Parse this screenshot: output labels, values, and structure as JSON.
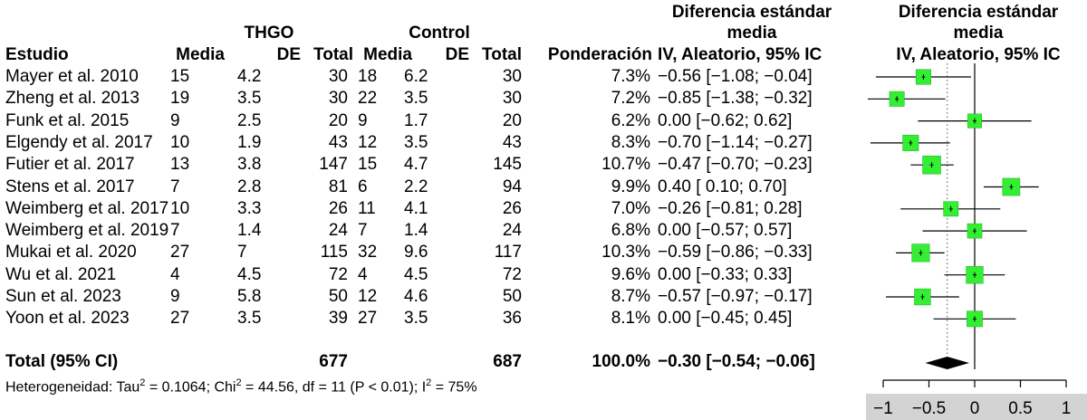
{
  "headers": {
    "group_thgo": "THGO",
    "group_control": "Control",
    "col_study": "Estudio",
    "col_media_1": "Media",
    "col_de_1": "DE",
    "col_total_1": "Total",
    "col_media_2": "Media",
    "col_de_2": "DE",
    "col_total_2": "Total",
    "col_weight": "Ponderación",
    "smd_line1": "Diferencia estándar",
    "smd_line2": "media",
    "smd_line3": "IV, Aleatorio, 95% IC",
    "plot_line1": "Diferencia estándar",
    "plot_line2": "media",
    "plot_line3": "IV, Aleatorio, 95% IC"
  },
  "rows": [
    {
      "study": "Mayer et al. 2010",
      "m1": "15",
      "sd1": "4.2",
      "n1": "30",
      "m2": "18",
      "sd2": "6.2",
      "n2": "30",
      "weight": "7.3%",
      "smd_text": "−0.56 [−1.08; −0.04]"
    },
    {
      "study": "Zheng et al. 2013",
      "m1": "19",
      "sd1": "3.5",
      "n1": "30",
      "m2": "22",
      "sd2": "3.5",
      "n2": "30",
      "weight": "7.2%",
      "smd_text": "−0.85 [−1.38; −0.32]"
    },
    {
      "study": "Funk et al. 2015",
      "m1": "9",
      "sd1": "2.5",
      "n1": "20",
      "m2": "9",
      "sd2": "1.7",
      "n2": "20",
      "weight": "6.2%",
      "smd_text": "0.00 [−0.62; 0.62]"
    },
    {
      "study": "Elgendy et al. 2017",
      "m1": "10",
      "sd1": "1.9",
      "n1": "43",
      "m2": "12",
      "sd2": "3.5",
      "n2": "43",
      "weight": "8.3%",
      "smd_text": "−0.70 [−1.14; −0.27]"
    },
    {
      "study": "Futier et al. 2017",
      "m1": "13",
      "sd1": "3.8",
      "n1": "147",
      "m2": "15",
      "sd2": "4.7",
      "n2": "145",
      "weight": "10.7%",
      "smd_text": "−0.47 [−0.70; −0.23]"
    },
    {
      "study": "Stens et al. 2017",
      "m1": "7",
      "sd1": "2.8",
      "n1": "81",
      "m2": "6",
      "sd2": "2.2",
      "n2": "94",
      "weight": "9.9%",
      "smd_text": "0.40 [ 0.10; 0.70]"
    },
    {
      "study": "Weimberg et al. 2017",
      "m1": "10",
      "sd1": "3.3",
      "n1": "26",
      "m2": "11",
      "sd2": "4.1",
      "n2": "26",
      "weight": "7.0%",
      "smd_text": "−0.26 [−0.81;  0.28]"
    },
    {
      "study": "Weimberg et al. 2019",
      "m1": "7",
      "sd1": "1.4",
      "n1": "24",
      "m2": "7",
      "sd2": "1.4",
      "n2": "24",
      "weight": "6.8%",
      "smd_text": "0.00 [−0.57; 0.57]"
    },
    {
      "study": "Mukai et al. 2020",
      "m1": "27",
      "sd1": "7",
      "n1": "115",
      "m2": "32",
      "sd2": "9.6",
      "n2": "117",
      "weight": "10.3%",
      "smd_text": "−0.59 [−0.86; −0.33]"
    },
    {
      "study": "Wu et al. 2021",
      "m1": "4",
      "sd1": "4.5",
      "n1": "72",
      "m2": "4",
      "sd2": "4.5",
      "n2": "72",
      "weight": "9.6%",
      "smd_text": "0.00 [−0.33; 0.33]"
    },
    {
      "study": "Sun et al. 2023",
      "m1": "9",
      "sd1": "5.8",
      "n1": "50",
      "m2": "12",
      "sd2": "4.6",
      "n2": "50",
      "weight": "8.7%",
      "smd_text": "−0.57 [−0.97; −0.17]"
    },
    {
      "study": "Yoon et al. 2023",
      "m1": "27",
      "sd1": "3.5",
      "n1": "39",
      "m2": "27",
      "sd2": "3.5",
      "n2": "36",
      "weight": "8.1%",
      "smd_text": "0.00 [−0.45; 0.45]"
    }
  ],
  "total": {
    "label": "Total (95% CI)",
    "n1": "677",
    "n2": "687",
    "weight": "100.0%",
    "smd_text": "−0.30 [−0.54; −0.06]"
  },
  "heterogeneity": {
    "prefix": "Heterogeneidad",
    "sep": ": Tau",
    "tau2": "0.1064",
    "chi2": "44.56",
    "rest": "df = 11 (P < 0.01); I",
    "i2": "75%"
  },
  "colors": {
    "square": "#33ee33",
    "square_border": "#22aa22",
    "diamond": "#000000",
    "axis_band": "#d3d3d3"
  },
  "chart_data": {
    "type": "forest",
    "title": "",
    "xlabel": "",
    "xlim": [
      -1,
      1
    ],
    "xticks": [
      -1,
      -0.5,
      0,
      0.5,
      1
    ],
    "xtick_labels": [
      "−1",
      "−0.5",
      "0",
      "0.5",
      "1"
    ],
    "null_line": 0,
    "pooled_line": -0.3,
    "studies": [
      {
        "name": "Mayer et al. 2010",
        "est": -0.56,
        "lo": -1.08,
        "hi": -0.04,
        "weight": 7.3
      },
      {
        "name": "Zheng et al. 2013",
        "est": -0.85,
        "lo": -1.38,
        "hi": -0.32,
        "weight": 7.2
      },
      {
        "name": "Funk et al. 2015",
        "est": 0.0,
        "lo": -0.62,
        "hi": 0.62,
        "weight": 6.2
      },
      {
        "name": "Elgendy et al. 2017",
        "est": -0.7,
        "lo": -1.14,
        "hi": -0.27,
        "weight": 8.3
      },
      {
        "name": "Futier et al. 2017",
        "est": -0.47,
        "lo": -0.7,
        "hi": -0.23,
        "weight": 10.7
      },
      {
        "name": "Stens et al. 2017",
        "est": 0.4,
        "lo": 0.1,
        "hi": 0.7,
        "weight": 9.9
      },
      {
        "name": "Weimberg et al. 2017",
        "est": -0.26,
        "lo": -0.81,
        "hi": 0.28,
        "weight": 7.0
      },
      {
        "name": "Weimberg et al. 2019",
        "est": 0.0,
        "lo": -0.57,
        "hi": 0.57,
        "weight": 6.8
      },
      {
        "name": "Mukai et al. 2020",
        "est": -0.59,
        "lo": -0.86,
        "hi": -0.33,
        "weight": 10.3
      },
      {
        "name": "Wu et al. 2021",
        "est": 0.0,
        "lo": -0.33,
        "hi": 0.33,
        "weight": 9.6
      },
      {
        "name": "Sun et al. 2023",
        "est": -0.57,
        "lo": -0.97,
        "hi": -0.17,
        "weight": 8.7
      },
      {
        "name": "Yoon et al. 2023",
        "est": 0.0,
        "lo": -0.45,
        "hi": 0.45,
        "weight": 8.1
      }
    ],
    "pooled": {
      "est": -0.3,
      "lo": -0.54,
      "hi": -0.06
    }
  }
}
